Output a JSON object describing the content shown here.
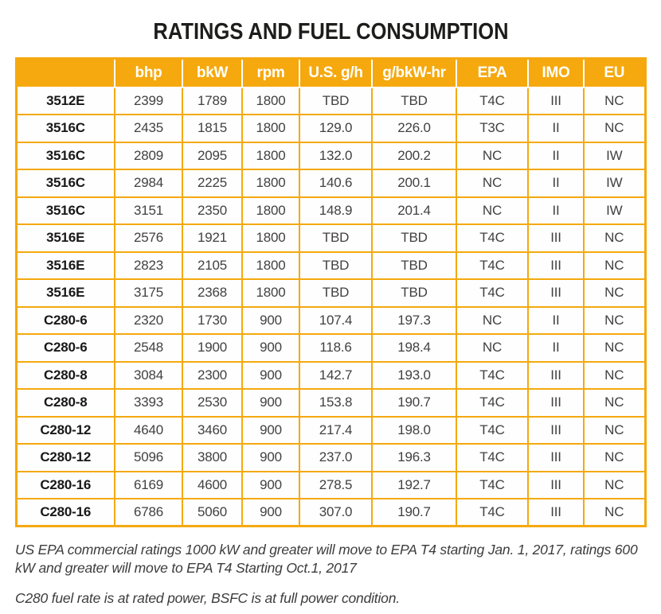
{
  "title": "RATINGS AND FUEL CONSUMPTION",
  "table": {
    "columns": [
      "",
      "bhp",
      "bkW",
      "rpm",
      "U.S. g/h",
      "g/bkW-hr",
      "EPA",
      "IMO",
      "EU"
    ],
    "rows": [
      [
        "3512E",
        "2399",
        "1789",
        "1800",
        "TBD",
        "TBD",
        "T4C",
        "III",
        "NC"
      ],
      [
        "3516C",
        "2435",
        "1815",
        "1800",
        "129.0",
        "226.0",
        "T3C",
        "II",
        "NC"
      ],
      [
        "3516C",
        "2809",
        "2095",
        "1800",
        "132.0",
        "200.2",
        "NC",
        "II",
        "IW"
      ],
      [
        "3516C",
        "2984",
        "2225",
        "1800",
        "140.6",
        "200.1",
        "NC",
        "II",
        "IW"
      ],
      [
        "3516C",
        "3151",
        "2350",
        "1800",
        "148.9",
        "201.4",
        "NC",
        "II",
        "IW"
      ],
      [
        "3516E",
        "2576",
        "1921",
        "1800",
        "TBD",
        "TBD",
        "T4C",
        "III",
        "NC"
      ],
      [
        "3516E",
        "2823",
        "2105",
        "1800",
        "TBD",
        "TBD",
        "T4C",
        "III",
        "NC"
      ],
      [
        "3516E",
        "3175",
        "2368",
        "1800",
        "TBD",
        "TBD",
        "T4C",
        "III",
        "NC"
      ],
      [
        "C280-6",
        "2320",
        "1730",
        "900",
        "107.4",
        "197.3",
        "NC",
        "II",
        "NC"
      ],
      [
        "C280-6",
        "2548",
        "1900",
        "900",
        "118.6",
        "198.4",
        "NC",
        "II",
        "NC"
      ],
      [
        "C280-8",
        "3084",
        "2300",
        "900",
        "142.7",
        "193.0",
        "T4C",
        "III",
        "NC"
      ],
      [
        "C280-8",
        "3393",
        "2530",
        "900",
        "153.8",
        "190.7",
        "T4C",
        "III",
        "NC"
      ],
      [
        "C280-12",
        "4640",
        "3460",
        "900",
        "217.4",
        "198.0",
        "T4C",
        "III",
        "NC"
      ],
      [
        "C280-12",
        "5096",
        "3800",
        "900",
        "237.0",
        "196.3",
        "T4C",
        "III",
        "NC"
      ],
      [
        "C280-16",
        "6169",
        "4600",
        "900",
        "278.5",
        "192.7",
        "T4C",
        "III",
        "NC"
      ],
      [
        "C280-16",
        "6786",
        "5060",
        "900",
        "307.0",
        "190.7",
        "T4C",
        "III",
        "NC"
      ]
    ]
  },
  "footnotes": [
    "US EPA commercial ratings 1000 kW and greater will move to EPA T4 starting Jan. 1, 2017, ratings 600 kW and greater will move to EPA T4 Starting Oct.1, 2017",
    "C280 fuel rate is at rated power, BSFC is at full power condition."
  ],
  "colors": {
    "accent": "#F5A90E",
    "header_text": "#FFFFFF",
    "body_text": "#414141",
    "model_text": "#181818",
    "title_text": "#1D1D1B",
    "footnote_text": "#3C3C3C"
  }
}
